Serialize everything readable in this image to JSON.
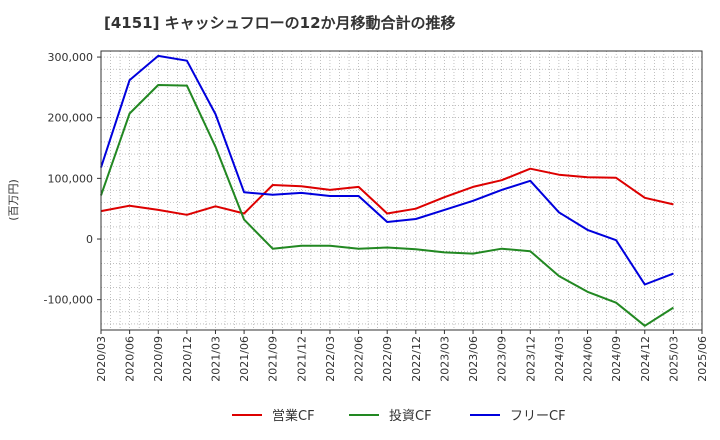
{
  "chart_data": {
    "type": "line",
    "title": "[4151]  キャッシュフローの12か月移動合計の推移",
    "ylabel": "(百万円)",
    "xlabel": "",
    "ylim": [
      -150000,
      310000
    ],
    "yticks": [
      -100000,
      0,
      100000,
      200000,
      300000
    ],
    "ytick_labels": [
      "-100,000",
      "0",
      "100,000",
      "200,000",
      "300,000"
    ],
    "x": [
      "2020/03",
      "2020/06",
      "2020/09",
      "2020/12",
      "2021/03",
      "2021/06",
      "2021/09",
      "2021/12",
      "2022/03",
      "2022/06",
      "2022/09",
      "2022/12",
      "2023/03",
      "2023/06",
      "2023/09",
      "2023/12",
      "2024/03",
      "2024/06",
      "2024/09",
      "2024/12",
      "2025/03",
      "2025/06"
    ],
    "grid": true,
    "legend_position": "bottom",
    "series": [
      {
        "name": "営業CF",
        "color": "#dd0000",
        "values": [
          46000,
          55000,
          48000,
          40000,
          54000,
          42000,
          89000,
          87000,
          81000,
          86000,
          42000,
          50000,
          69000,
          86000,
          97000,
          116000,
          106000,
          102000,
          101000,
          68000,
          57000,
          null
        ]
      },
      {
        "name": "投資CF",
        "color": "#228822",
        "values": [
          72000,
          207000,
          254000,
          253000,
          152000,
          32000,
          -16000,
          -11000,
          -11000,
          -16000,
          -14000,
          -17000,
          -22000,
          -24000,
          -16000,
          -20000,
          -61000,
          -87000,
          -105000,
          -143000,
          -113000,
          null
        ]
      },
      {
        "name": "フリーCF",
        "color": "#0000dd",
        "values": [
          118000,
          262000,
          302000,
          294000,
          206000,
          77000,
          73000,
          76000,
          71000,
          71000,
          28000,
          33000,
          48000,
          63000,
          81000,
          96000,
          44000,
          15000,
          -2000,
          -75000,
          -57000,
          null
        ]
      }
    ]
  }
}
